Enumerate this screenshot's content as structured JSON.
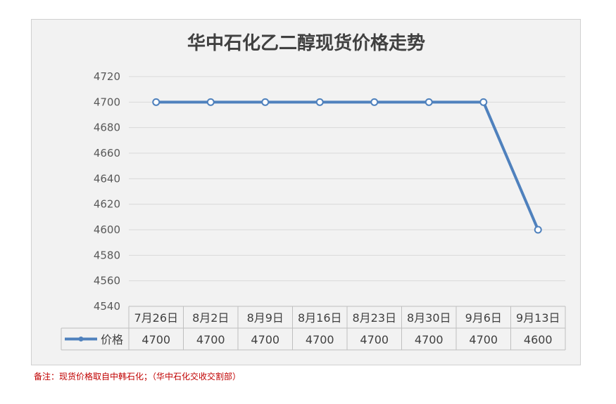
{
  "chart_data": {
    "type": "line",
    "title": "华中石化乙二醇现货价格走势",
    "categories": [
      "7月26日",
      "8月2日",
      "8月9日",
      "8月16日",
      "8月23日",
      "8月30日",
      "9月6日",
      "9月13日"
    ],
    "series": [
      {
        "name": "价格",
        "values": [
          4700,
          4700,
          4700,
          4700,
          4700,
          4700,
          4700,
          4600
        ]
      }
    ],
    "ylim": [
      4540,
      4720
    ],
    "yticks": [
      4540,
      4560,
      4580,
      4600,
      4620,
      4640,
      4660,
      4680,
      4700,
      4720
    ],
    "grid": true,
    "data_table": true,
    "colors": {
      "line": "#4f81bd",
      "marker_fill": "#ffffff",
      "grid": "#d9d9d9",
      "table_border": "#bfbfbf"
    }
  },
  "footnote": "备注：现货价格取自中韩石化；（华中石化交收交割部）"
}
